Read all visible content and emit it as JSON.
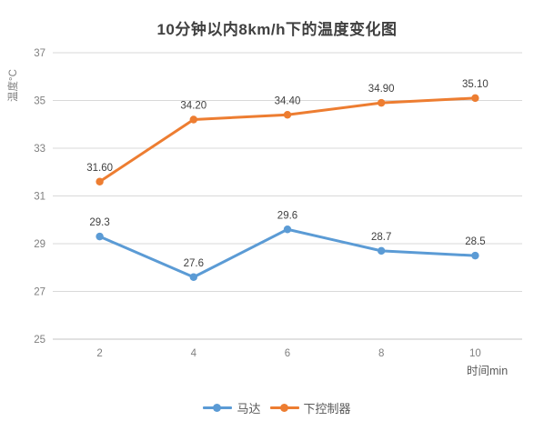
{
  "chart_data": {
    "type": "line",
    "title": "10分钟以内8km/h下的温度变化图",
    "categories": [
      "2",
      "4",
      "6",
      "8",
      "10"
    ],
    "series": [
      {
        "name": "马达",
        "color": "#5B9BD5",
        "values": [
          29.3,
          27.6,
          29.6,
          28.7,
          28.5
        ],
        "labels": [
          "29.3",
          "27.6",
          "29.6",
          "28.7",
          "28.5"
        ]
      },
      {
        "name": "下控制器",
        "color": "#ED7D31",
        "values": [
          31.6,
          34.2,
          34.4,
          34.9,
          35.1
        ],
        "labels": [
          "31.60",
          "34.20",
          "34.40",
          "34.90",
          "35.10"
        ]
      }
    ],
    "xlabel": "时间min",
    "ylabel": "温度°C",
    "ylim": [
      25,
      37
    ],
    "y_ticks": [
      37,
      35,
      33,
      31,
      29,
      27,
      25
    ],
    "grid": true,
    "legend_position": "bottom",
    "colors": {
      "gridline": "#d9d9d9",
      "axis_line": "#c3c3c3",
      "tick_label": "#7f7f7f",
      "data_label": "#404040",
      "axis_title": "#595959"
    }
  }
}
